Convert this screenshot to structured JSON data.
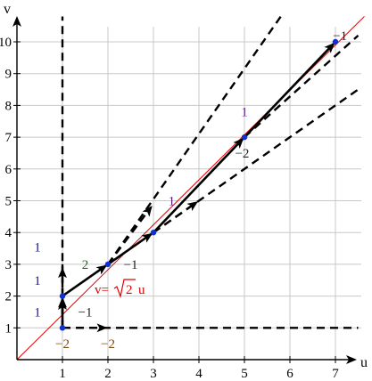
{
  "figure": {
    "x_axis_label": "u",
    "y_axis_label": "v",
    "equation_prefix": "v=",
    "equation_radicand": "2",
    "equation_suffix": "u"
  },
  "colors": {
    "grid": "#c8c8c8",
    "axis": "#000000",
    "line": "#e00000",
    "point": "#1030d0",
    "blue_label": "#1a1a7a",
    "green_label": "#1a6a1a",
    "brown_label": "#7a4a10",
    "purple_label": "#5a1a8a",
    "dark_label": "#222222"
  },
  "chart_data": {
    "type": "diagram",
    "x_range": [
      0,
      7.5
    ],
    "y_range": [
      0,
      10.5
    ],
    "x_ticks": [
      "1",
      "2",
      "3",
      "4",
      "5",
      "6",
      "7"
    ],
    "y_ticks": [
      "1",
      "2",
      "3",
      "4",
      "5",
      "6",
      "7",
      "8",
      "9",
      "10"
    ],
    "points": [
      [
        1,
        1
      ],
      [
        1,
        2
      ],
      [
        2,
        3
      ],
      [
        3,
        4
      ],
      [
        5,
        7
      ],
      [
        7,
        10
      ]
    ],
    "reference_line_slope": 1.41421356,
    "path_segments": [
      [
        [
          1,
          1
        ],
        [
          1,
          2
        ]
      ],
      [
        [
          1,
          2
        ],
        [
          2,
          3
        ]
      ],
      [
        [
          2,
          3
        ],
        [
          3,
          4
        ]
      ],
      [
        [
          3,
          4
        ],
        [
          5,
          7
        ]
      ],
      [
        [
          5,
          7
        ],
        [
          7,
          10
        ]
      ]
    ],
    "cone_rays": [
      {
        "from": [
          1,
          1
        ],
        "to": [
          1,
          10.8
        ]
      },
      {
        "from": [
          1,
          1
        ],
        "to": [
          7.5,
          1
        ]
      },
      {
        "from": [
          1,
          2
        ],
        "to": [
          1,
          3
        ]
      },
      {
        "from": [
          2,
          3
        ],
        "to": [
          5.8,
          10.8
        ]
      },
      {
        "from": [
          3,
          4
        ],
        "to": [
          7.5,
          8.5
        ]
      },
      {
        "from": [
          5,
          7
        ],
        "to": [
          7.5,
          10.2
        ]
      }
    ],
    "arrowheads": [
      {
        "from": [
          1,
          1
        ],
        "to": [
          1,
          1.85
        ]
      },
      {
        "from": [
          1,
          1
        ],
        "to": [
          1.95,
          1
        ]
      },
      {
        "from": [
          1,
          2
        ],
        "to": [
          1,
          2.85
        ]
      },
      {
        "from": [
          2,
          3
        ],
        "to": [
          2.95,
          4.8
        ]
      },
      {
        "from": [
          3,
          4
        ],
        "to": [
          3.95,
          4.95
        ]
      }
    ],
    "annotations": [
      {
        "text": "1",
        "u": 0.45,
        "v": 3.55,
        "color": "blue_label"
      },
      {
        "text": "1",
        "u": 0.45,
        "v": 2.5,
        "color": "blue_label"
      },
      {
        "text": "1",
        "u": 0.45,
        "v": 1.5,
        "color": "blue_label"
      },
      {
        "text": "2",
        "u": 1.5,
        "v": 3.0,
        "color": "green_label"
      },
      {
        "text": "−1",
        "u": 2.5,
        "v": 3.0,
        "color": "dark_label"
      },
      {
        "text": "−1",
        "u": 1.5,
        "v": 1.5,
        "color": "dark_label"
      },
      {
        "text": "−2",
        "u": 1.0,
        "v": 0.5,
        "color": "brown_label"
      },
      {
        "text": "−2",
        "u": 2.0,
        "v": 0.5,
        "color": "brown_label"
      },
      {
        "text": "1",
        "u": 3.4,
        "v": 5.0,
        "color": "purple_label"
      },
      {
        "text": "1",
        "u": 5.0,
        "v": 7.8,
        "color": "purple_label"
      },
      {
        "text": "−2",
        "u": 4.95,
        "v": 6.5,
        "color": "dark_label"
      },
      {
        "text": "−1",
        "u": 7.1,
        "v": 10.2,
        "color": "dark_label"
      }
    ]
  }
}
